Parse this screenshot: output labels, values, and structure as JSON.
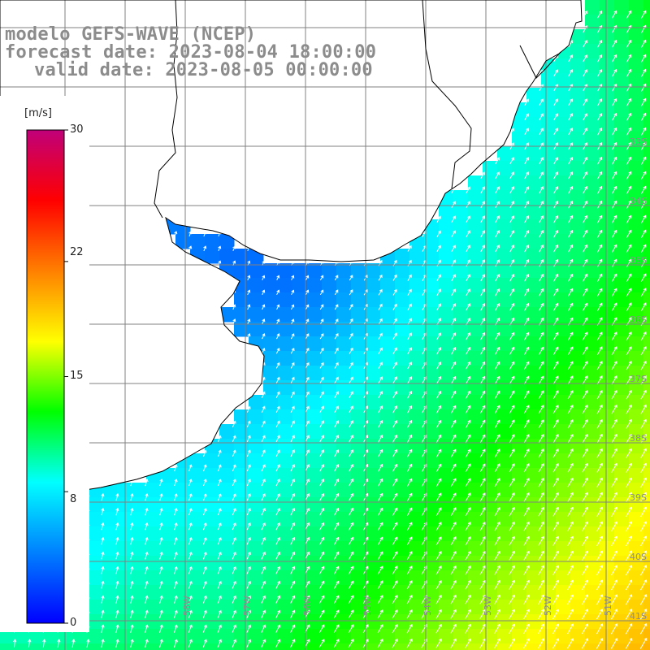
{
  "title": {
    "model": "modelo GEFS-WAVE (NCEP)",
    "forecast": "forecast date: 2023-08-04 18:00:00",
    "valid": "valid date: 2023-08-05 00:00:00"
  },
  "colorbar": {
    "unit": "[m/s]",
    "min": 0,
    "max": 30,
    "ticks": [
      {
        "label": "30",
        "value": 30
      },
      {
        "label": "22",
        "value": 22
      },
      {
        "label": "15",
        "value": 15
      },
      {
        "label": "8",
        "value": 8
      },
      {
        "label": "0",
        "value": 0
      }
    ],
    "colors": [
      "#0000ff",
      "#0080ff",
      "#00ffff",
      "#00ff00",
      "#ffff00",
      "#ff8000",
      "#ff0000",
      "#c0007a"
    ]
  },
  "longitude_labels": [
    "58W",
    "57W",
    "56W",
    "55W",
    "54W",
    "53W",
    "52W",
    "51W"
  ],
  "latitude_labels": [
    "33S",
    "34S",
    "35S",
    "36S",
    "37S",
    "38S",
    "39S",
    "40S",
    "41S"
  ],
  "colors": {
    "land": "#ffffff",
    "coast": "#000000",
    "grid": "#808080",
    "arrow": "#ffffff",
    "title": "#8c8c8c"
  }
}
